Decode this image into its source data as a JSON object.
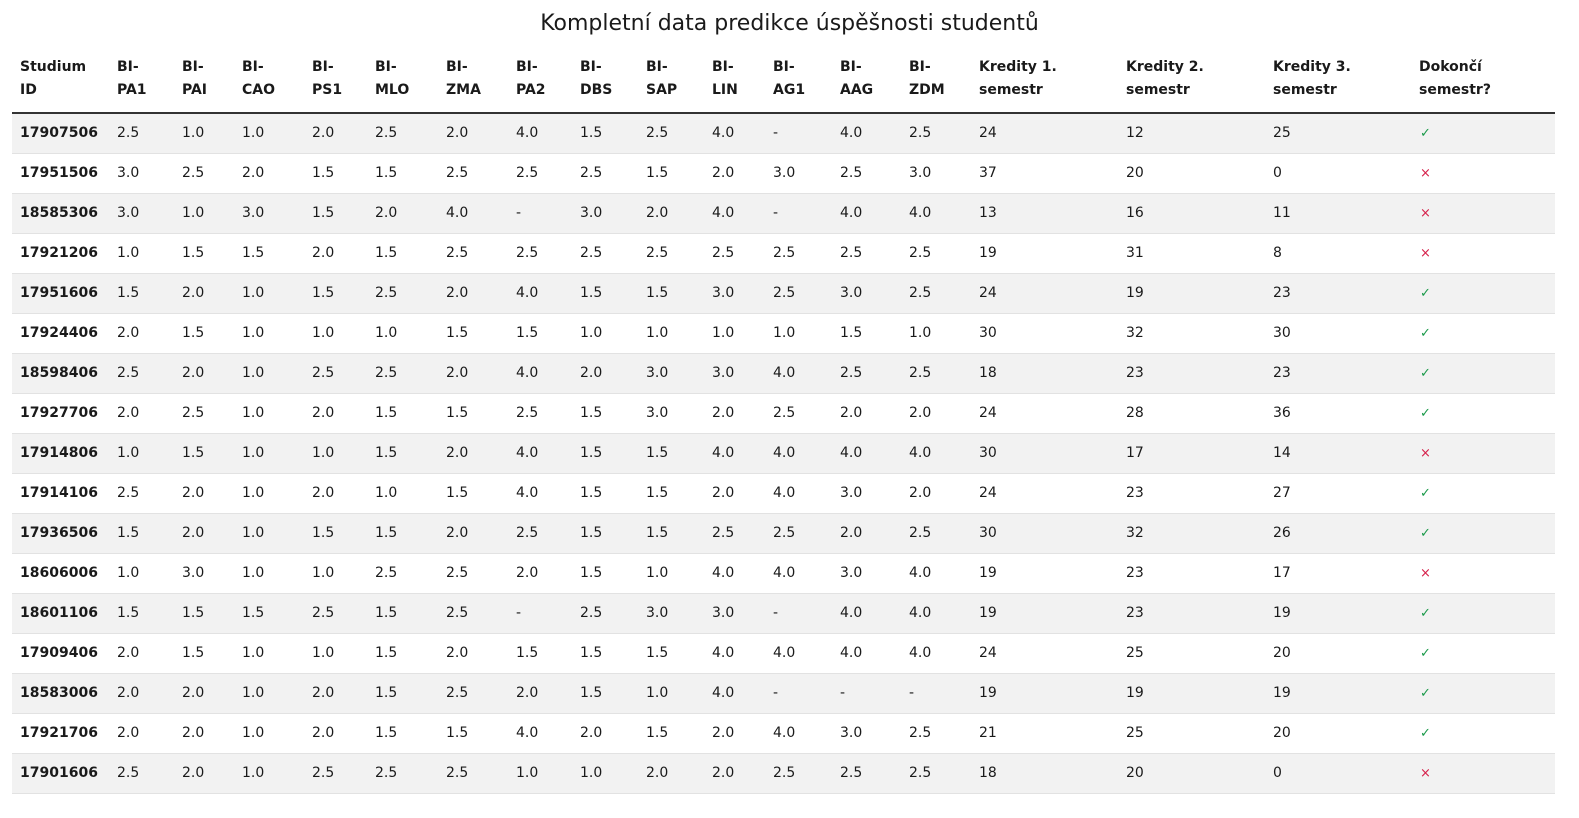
{
  "page_title": "Kompletní data predikce úspěšnosti studentů",
  "colors": {
    "success": "#1a9a4a",
    "failure": "#d6204a",
    "row_stripe": "#f2f2f2"
  },
  "icons": {
    "success": "check-icon",
    "failure": "cross-icon"
  },
  "table": {
    "headers": [
      {
        "l1": "Studium",
        "l2": "ID"
      },
      {
        "l1": "BI-",
        "l2": "PA1"
      },
      {
        "l1": "BI-",
        "l2": "PAI"
      },
      {
        "l1": "BI-",
        "l2": "CAO"
      },
      {
        "l1": "BI-",
        "l2": "PS1"
      },
      {
        "l1": "BI-",
        "l2": "MLO"
      },
      {
        "l1": "BI-",
        "l2": "ZMA"
      },
      {
        "l1": "BI-",
        "l2": "PA2"
      },
      {
        "l1": "BI-",
        "l2": "DBS"
      },
      {
        "l1": "BI-",
        "l2": "SAP"
      },
      {
        "l1": "BI-",
        "l2": "LIN"
      },
      {
        "l1": "BI-",
        "l2": "AG1"
      },
      {
        "l1": "BI-",
        "l2": "AAG"
      },
      {
        "l1": "BI-",
        "l2": "ZDM"
      },
      {
        "l1": "Kredity 1.",
        "l2": "semestr"
      },
      {
        "l1": "Kredity 2.",
        "l2": "semestr"
      },
      {
        "l1": "Kredity 3.",
        "l2": "semestr"
      },
      {
        "l1": "Dokončí",
        "l2": "semestr?"
      }
    ],
    "rows": [
      {
        "id": "17907506",
        "grades": [
          "2.5",
          "1.0",
          "1.0",
          "2.0",
          "2.5",
          "2.0",
          "4.0",
          "1.5",
          "2.5",
          "4.0",
          "-",
          "4.0",
          "2.5"
        ],
        "credits": [
          "24",
          "12",
          "25"
        ],
        "completes": true
      },
      {
        "id": "17951506",
        "grades": [
          "3.0",
          "2.5",
          "2.0",
          "1.5",
          "1.5",
          "2.5",
          "2.5",
          "2.5",
          "1.5",
          "2.0",
          "3.0",
          "2.5",
          "3.0"
        ],
        "credits": [
          "37",
          "20",
          "0"
        ],
        "completes": false
      },
      {
        "id": "18585306",
        "grades": [
          "3.0",
          "1.0",
          "3.0",
          "1.5",
          "2.0",
          "4.0",
          "-",
          "3.0",
          "2.0",
          "4.0",
          "-",
          "4.0",
          "4.0"
        ],
        "credits": [
          "13",
          "16",
          "11"
        ],
        "completes": false
      },
      {
        "id": "17921206",
        "grades": [
          "1.0",
          "1.5",
          "1.5",
          "2.0",
          "1.5",
          "2.5",
          "2.5",
          "2.5",
          "2.5",
          "2.5",
          "2.5",
          "2.5",
          "2.5"
        ],
        "credits": [
          "19",
          "31",
          "8"
        ],
        "completes": false
      },
      {
        "id": "17951606",
        "grades": [
          "1.5",
          "2.0",
          "1.0",
          "1.5",
          "2.5",
          "2.0",
          "4.0",
          "1.5",
          "1.5",
          "3.0",
          "2.5",
          "3.0",
          "2.5"
        ],
        "credits": [
          "24",
          "19",
          "23"
        ],
        "completes": true
      },
      {
        "id": "17924406",
        "grades": [
          "2.0",
          "1.5",
          "1.0",
          "1.0",
          "1.0",
          "1.5",
          "1.5",
          "1.0",
          "1.0",
          "1.0",
          "1.0",
          "1.5",
          "1.0"
        ],
        "credits": [
          "30",
          "32",
          "30"
        ],
        "completes": true
      },
      {
        "id": "18598406",
        "grades": [
          "2.5",
          "2.0",
          "1.0",
          "2.5",
          "2.5",
          "2.0",
          "4.0",
          "2.0",
          "3.0",
          "3.0",
          "4.0",
          "2.5",
          "2.5"
        ],
        "credits": [
          "18",
          "23",
          "23"
        ],
        "completes": true
      },
      {
        "id": "17927706",
        "grades": [
          "2.0",
          "2.5",
          "1.0",
          "2.0",
          "1.5",
          "1.5",
          "2.5",
          "1.5",
          "3.0",
          "2.0",
          "2.5",
          "2.0",
          "2.0"
        ],
        "credits": [
          "24",
          "28",
          "36"
        ],
        "completes": true
      },
      {
        "id": "17914806",
        "grades": [
          "1.0",
          "1.5",
          "1.0",
          "1.0",
          "1.5",
          "2.0",
          "4.0",
          "1.5",
          "1.5",
          "4.0",
          "4.0",
          "4.0",
          "4.0"
        ],
        "credits": [
          "30",
          "17",
          "14"
        ],
        "completes": false
      },
      {
        "id": "17914106",
        "grades": [
          "2.5",
          "2.0",
          "1.0",
          "2.0",
          "1.0",
          "1.5",
          "4.0",
          "1.5",
          "1.5",
          "2.0",
          "4.0",
          "3.0",
          "2.0"
        ],
        "credits": [
          "24",
          "23",
          "27"
        ],
        "completes": true
      },
      {
        "id": "17936506",
        "grades": [
          "1.5",
          "2.0",
          "1.0",
          "1.5",
          "1.5",
          "2.0",
          "2.5",
          "1.5",
          "1.5",
          "2.5",
          "2.5",
          "2.0",
          "2.5"
        ],
        "credits": [
          "30",
          "32",
          "26"
        ],
        "completes": true
      },
      {
        "id": "18606006",
        "grades": [
          "1.0",
          "3.0",
          "1.0",
          "1.0",
          "2.5",
          "2.5",
          "2.0",
          "1.5",
          "1.0",
          "4.0",
          "4.0",
          "3.0",
          "4.0"
        ],
        "credits": [
          "19",
          "23",
          "17"
        ],
        "completes": false
      },
      {
        "id": "18601106",
        "grades": [
          "1.5",
          "1.5",
          "1.5",
          "2.5",
          "1.5",
          "2.5",
          "-",
          "2.5",
          "3.0",
          "3.0",
          "-",
          "4.0",
          "4.0"
        ],
        "credits": [
          "19",
          "23",
          "19"
        ],
        "completes": true
      },
      {
        "id": "17909406",
        "grades": [
          "2.0",
          "1.5",
          "1.0",
          "1.0",
          "1.5",
          "2.0",
          "1.5",
          "1.5",
          "1.5",
          "4.0",
          "4.0",
          "4.0",
          "4.0"
        ],
        "credits": [
          "24",
          "25",
          "20"
        ],
        "completes": true
      },
      {
        "id": "18583006",
        "grades": [
          "2.0",
          "2.0",
          "1.0",
          "2.0",
          "1.5",
          "2.5",
          "2.0",
          "1.5",
          "1.0",
          "4.0",
          "-",
          "-",
          "-"
        ],
        "credits": [
          "19",
          "19",
          "19"
        ],
        "completes": true
      },
      {
        "id": "17921706",
        "grades": [
          "2.0",
          "2.0",
          "1.0",
          "2.0",
          "1.5",
          "1.5",
          "4.0",
          "2.0",
          "1.5",
          "2.0",
          "4.0",
          "3.0",
          "2.5"
        ],
        "credits": [
          "21",
          "25",
          "20"
        ],
        "completes": true
      },
      {
        "id": "17901606",
        "grades": [
          "2.5",
          "2.0",
          "1.0",
          "2.5",
          "2.5",
          "2.5",
          "1.0",
          "1.0",
          "2.0",
          "2.0",
          "2.5",
          "2.5",
          "2.5"
        ],
        "credits": [
          "18",
          "20",
          "0"
        ],
        "completes": false
      }
    ]
  }
}
